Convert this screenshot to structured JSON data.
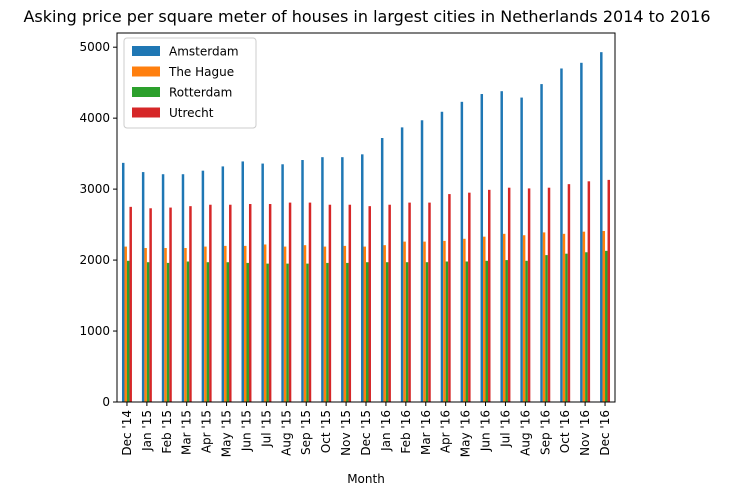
{
  "chart_data": {
    "type": "bar",
    "title": "Asking price per square meter of houses in largest cities in Netherlands 2014 to 2016",
    "xlabel": "Month",
    "ylabel": "",
    "ylim": [
      0,
      5200
    ],
    "yticks": [
      0,
      1000,
      2000,
      3000,
      4000,
      5000
    ],
    "grid": false,
    "legend_placement": "top-left",
    "categories": [
      "Dec '14",
      "Jan '15",
      "Feb '15",
      "Mar '15",
      "Apr '15",
      "May '15",
      "Jun '15",
      "Jul '15",
      "Aug '15",
      "Sep '15",
      "Oct '15",
      "Nov '15",
      "Dec '15",
      "Jan '16",
      "Feb '16",
      "Mar '16",
      "Apr '16",
      "May '16",
      "Jun '16",
      "Jul '16",
      "Aug '16",
      "Sep '16",
      "Oct '16",
      "Nov '16",
      "Dec '16"
    ],
    "series": [
      {
        "name": "Amsterdam",
        "color": "#1f77b4",
        "values": [
          3370,
          3240,
          3210,
          3210,
          3260,
          3320,
          3390,
          3360,
          3350,
          3410,
          3450,
          3450,
          3490,
          3720,
          3870,
          3970,
          4090,
          4230,
          4340,
          4380,
          4290,
          4480,
          4700,
          4780,
          4930
        ]
      },
      {
        "name": "The Hague",
        "color": "#ff7f0e",
        "values": [
          2190,
          2170,
          2170,
          2170,
          2190,
          2200,
          2200,
          2220,
          2190,
          2210,
          2190,
          2200,
          2190,
          2210,
          2260,
          2260,
          2270,
          2300,
          2330,
          2370,
          2350,
          2390,
          2370,
          2400,
          2410
        ]
      },
      {
        "name": "Rotterdam",
        "color": "#2ca02c",
        "values": [
          1990,
          1970,
          1960,
          1980,
          1970,
          1970,
          1960,
          1950,
          1950,
          1950,
          1960,
          1960,
          1970,
          1970,
          1970,
          1970,
          1980,
          1980,
          1990,
          2000,
          1990,
          2070,
          2090,
          2110,
          2130
        ]
      },
      {
        "name": "Utrecht",
        "color": "#d62728",
        "values": [
          2750,
          2730,
          2740,
          2760,
          2780,
          2780,
          2790,
          2790,
          2810,
          2810,
          2780,
          2780,
          2760,
          2780,
          2810,
          2810,
          2930,
          2950,
          2990,
          3020,
          3010,
          3020,
          3070,
          3110,
          3130
        ]
      }
    ]
  }
}
